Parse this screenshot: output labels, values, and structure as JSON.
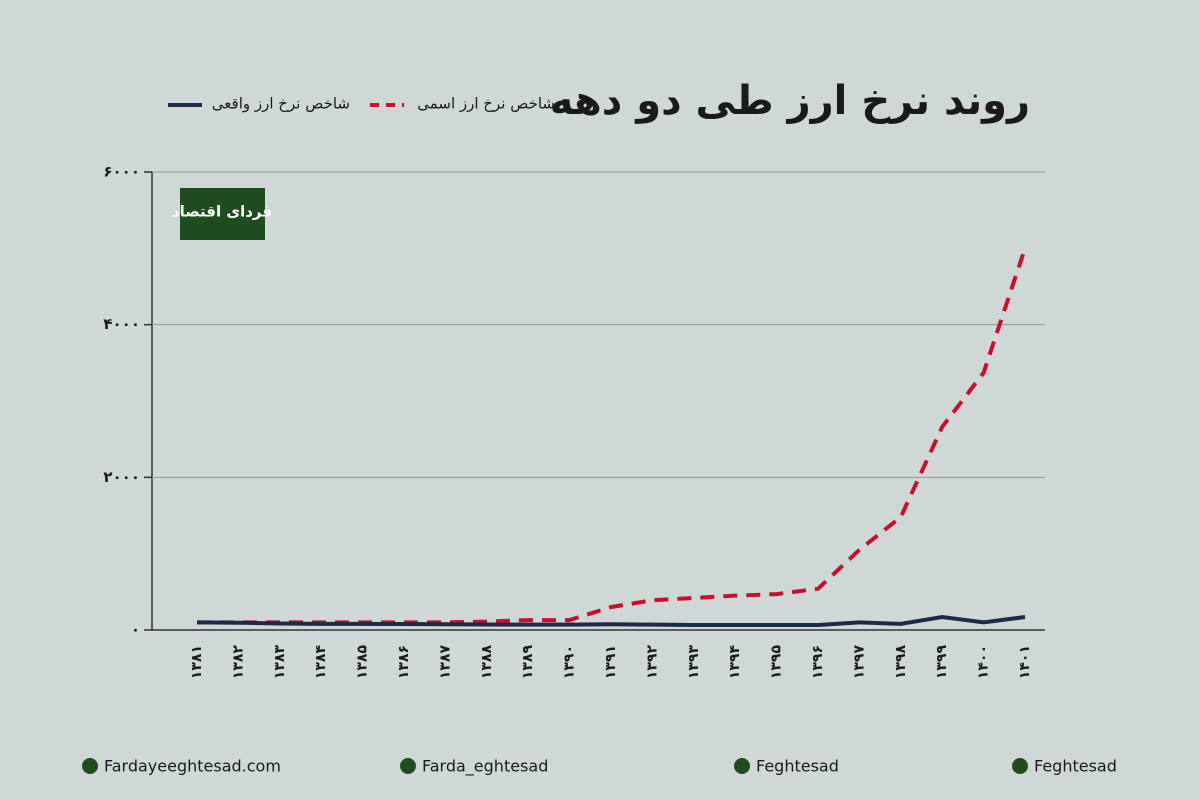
{
  "chart_data": {
    "type": "line",
    "title": "روند نرخ ارز طی دو دهه",
    "logo": "فردای اقتصاد",
    "categories": [
      "۱۳۸۱",
      "۱۳۸۲",
      "۱۳۸۳",
      "۱۳۸۴",
      "۱۳۸۵",
      "۱۳۸۶",
      "۱۳۸۷",
      "۱۳۸۸",
      "۱۳۸۹",
      "۱۳۹۰",
      "۱۳۹۱",
      "۱۳۹۲",
      "۱۳۹۳",
      "۱۳۹۴",
      "۱۳۹۵",
      "۱۳۹۶",
      "۱۳۹۷",
      "۱۳۹۸",
      "۱۳۹۹",
      "۱۴۰۰",
      "۱۴۰۱"
    ],
    "series": [
      {
        "name": "شاخص نرخ ارز اسمی",
        "color": "#c8102e",
        "dashed": true,
        "values": [
          100,
          100,
          100,
          100,
          100,
          100,
          100,
          110,
          130,
          130,
          300,
          390,
          420,
          450,
          470,
          540,
          1050,
          1480,
          2660,
          3370,
          5000
        ]
      },
      {
        "name": "شاخص نرخ ارز واقعی",
        "color": "#1c2b4a",
        "dashed": false,
        "values": [
          100,
          95,
          85,
          80,
          80,
          78,
          75,
          72,
          70,
          70,
          75,
          70,
          65,
          65,
          65,
          65,
          100,
          80,
          170,
          100,
          170
        ]
      }
    ],
    "ylim": [
      0,
      6000
    ],
    "yticks": [
      {
        "value": 0,
        "label": "۰"
      },
      {
        "value": 2000,
        "label": "۲۰۰۰"
      },
      {
        "value": 4000,
        "label": "۴۰۰۰"
      },
      {
        "value": 6000,
        "label": "۶۰۰۰"
      }
    ],
    "grid": true
  },
  "footer": {
    "links": [
      "Fardayeeghtesad.com",
      "Farda_eghtesad",
      "Feghtesad",
      "Feghtesad"
    ]
  }
}
